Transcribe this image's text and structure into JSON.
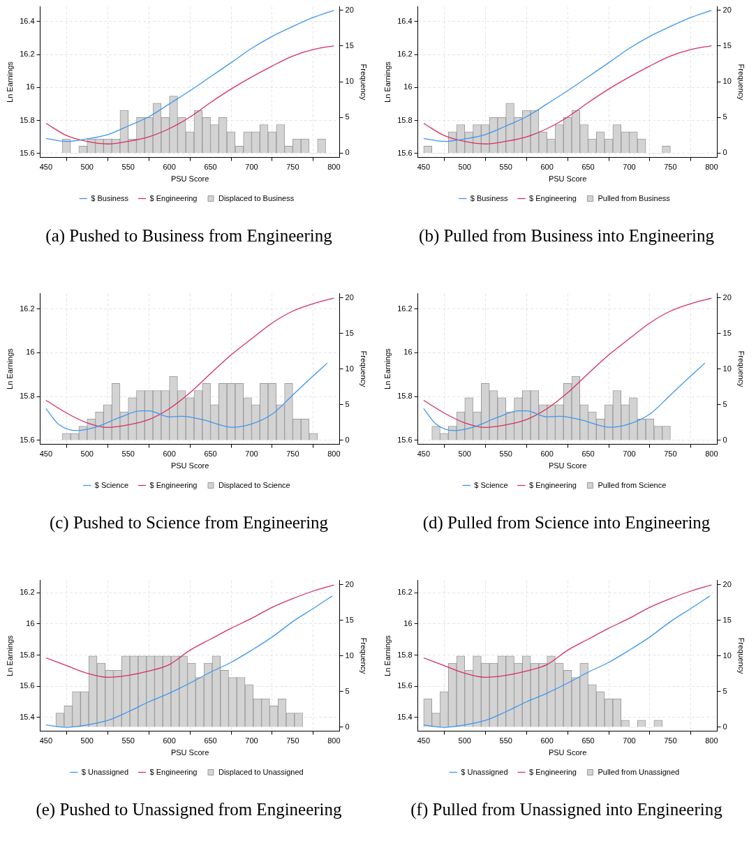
{
  "chart_data": [
    {
      "type": "line",
      "title": "(a) Pushed to Business from Engineering",
      "xlabel": "PSU Score",
      "ylabel": "Ln Earnings",
      "y2label": "Frequency",
      "xlim": [
        443,
        807
      ],
      "xticks": [
        450,
        500,
        550,
        600,
        650,
        700,
        750,
        800
      ],
      "ylim": [
        15.575,
        16.49
      ],
      "yticks": [
        15.6,
        15.8,
        16,
        16.2,
        16.4
      ],
      "y2lim": [
        -0.6,
        20.5
      ],
      "y2ticks": [
        0,
        5,
        10,
        15,
        20
      ],
      "grid": true,
      "legend": "bottom",
      "series": [
        {
          "name": "$ Business",
          "color": "#3c96f0",
          "x": [
            450,
            475,
            500,
            525,
            550,
            575,
            600,
            625,
            650,
            675,
            700,
            725,
            750,
            775,
            800
          ],
          "values": [
            15.69,
            15.672,
            15.688,
            15.714,
            15.766,
            15.822,
            15.9,
            15.98,
            16.065,
            16.15,
            16.237,
            16.31,
            16.37,
            16.425,
            16.468
          ]
        },
        {
          "name": "$ Engineering",
          "color": "#d62f5f",
          "x": [
            450,
            475,
            500,
            525,
            550,
            575,
            600,
            625,
            650,
            675,
            700,
            725,
            750,
            775,
            800
          ],
          "values": [
            15.782,
            15.708,
            15.672,
            15.657,
            15.673,
            15.7,
            15.75,
            15.82,
            15.908,
            15.99,
            16.063,
            16.13,
            16.19,
            16.23,
            16.253
          ]
        },
        {
          "type": "histogram",
          "axis": "y2",
          "name": "Displaced to Business",
          "color": "#d3d3d3",
          "bins": [
            470,
            480,
            490,
            500,
            510,
            520,
            530,
            540,
            550,
            560,
            570,
            580,
            590,
            600,
            610,
            620,
            630,
            640,
            650,
            660,
            670,
            680,
            690,
            700,
            710,
            720,
            730,
            740,
            750,
            760,
            770,
            780,
            790
          ],
          "values": [
            2,
            0,
            1,
            2,
            2,
            2,
            2,
            6,
            2,
            5,
            5,
            7,
            5,
            8,
            5,
            3,
            6,
            5,
            4,
            5,
            3,
            1,
            3,
            3,
            4,
            3,
            4,
            1,
            2,
            2,
            0,
            2
          ]
        }
      ]
    },
    {
      "type": "line",
      "title": "(b) Pulled from Business into Engineering",
      "xlabel": "PSU Score",
      "ylabel": "Ln Earnings",
      "y2label": "Frequency",
      "xlim": [
        443,
        807
      ],
      "xticks": [
        450,
        500,
        550,
        600,
        650,
        700,
        750,
        800
      ],
      "ylim": [
        15.575,
        16.49
      ],
      "yticks": [
        15.6,
        15.8,
        16,
        16.2,
        16.4
      ],
      "y2lim": [
        -0.6,
        20.5
      ],
      "y2ticks": [
        0,
        5,
        10,
        15,
        20
      ],
      "grid": true,
      "legend": "bottom",
      "series": [
        {
          "name": "$ Business",
          "color": "#3c96f0",
          "x": [
            450,
            475,
            500,
            525,
            550,
            575,
            600,
            625,
            650,
            675,
            700,
            725,
            750,
            775,
            800
          ],
          "values": [
            15.69,
            15.672,
            15.688,
            15.714,
            15.766,
            15.822,
            15.9,
            15.98,
            16.065,
            16.15,
            16.237,
            16.31,
            16.37,
            16.425,
            16.468
          ]
        },
        {
          "name": "$ Engineering",
          "color": "#d62f5f",
          "x": [
            450,
            475,
            500,
            525,
            550,
            575,
            600,
            625,
            650,
            675,
            700,
            725,
            750,
            775,
            800
          ],
          "values": [
            15.782,
            15.708,
            15.672,
            15.657,
            15.673,
            15.7,
            15.75,
            15.82,
            15.908,
            15.99,
            16.063,
            16.13,
            16.19,
            16.23,
            16.253
          ]
        },
        {
          "type": "histogram",
          "axis": "y2",
          "name": "Pulled from Business",
          "color": "#d3d3d3",
          "bins": [
            450,
            460,
            470,
            480,
            490,
            500,
            510,
            520,
            530,
            540,
            550,
            560,
            570,
            580,
            590,
            600,
            610,
            620,
            630,
            640,
            650,
            660,
            670,
            680,
            690,
            700,
            710,
            720,
            730,
            740,
            750
          ],
          "values": [
            1,
            0,
            0,
            3,
            4,
            3,
            4,
            4,
            5,
            5,
            7,
            5,
            6,
            6,
            3,
            2,
            4,
            5,
            6,
            4,
            2,
            3,
            2,
            4,
            3,
            3,
            2,
            0,
            0,
            1
          ]
        }
      ]
    },
    {
      "type": "line",
      "title": "(c) Pushed to Science from Engineering",
      "xlabel": "PSU Score",
      "ylabel": "Ln Earnings",
      "y2label": "Frequency",
      "xlim": [
        443,
        807
      ],
      "xticks": [
        450,
        500,
        550,
        600,
        650,
        700,
        750,
        800
      ],
      "ylim": [
        15.582,
        16.27
      ],
      "yticks": [
        15.6,
        15.8,
        16,
        16.2
      ],
      "y2lim": [
        -0.55,
        20.6
      ],
      "y2ticks": [
        0,
        5,
        10,
        15,
        20
      ],
      "grid": true,
      "legend": "bottom",
      "series": [
        {
          "name": "$ Science",
          "color": "#3c96f0",
          "x": [
            450,
            465,
            487,
            510,
            540,
            565,
            575,
            600,
            615,
            640,
            677,
            700,
            725,
            750,
            775,
            792
          ],
          "values": [
            15.745,
            15.675,
            15.645,
            15.66,
            15.705,
            15.735,
            15.735,
            15.707,
            15.71,
            15.695,
            15.66,
            15.675,
            15.72,
            15.807,
            15.895,
            15.953
          ]
        },
        {
          "name": "$ Engineering",
          "color": "#d62f5f",
          "x": [
            450,
            475,
            500,
            525,
            550,
            575,
            600,
            625,
            650,
            675,
            700,
            725,
            750,
            775,
            800
          ],
          "values": [
            15.783,
            15.725,
            15.68,
            15.659,
            15.671,
            15.695,
            15.745,
            15.817,
            15.905,
            15.99,
            16.064,
            16.136,
            16.19,
            16.224,
            16.249
          ]
        },
        {
          "type": "histogram",
          "axis": "y2",
          "name": "Displaced to Science",
          "color": "#d3d3d3",
          "bins": [
            470,
            480,
            490,
            500,
            510,
            520,
            530,
            540,
            550,
            560,
            570,
            580,
            590,
            600,
            610,
            620,
            630,
            640,
            650,
            660,
            670,
            680,
            690,
            700,
            710,
            720,
            730,
            740,
            750,
            760,
            770,
            780
          ],
          "values": [
            1,
            1,
            2,
            3,
            4,
            5,
            8,
            4,
            6,
            7,
            7,
            7,
            7,
            9,
            7,
            6,
            7,
            8,
            5,
            8,
            8,
            8,
            6,
            5,
            8,
            8,
            5,
            8,
            3,
            3,
            1
          ]
        }
      ]
    },
    {
      "type": "line",
      "title": "(d) Pulled from Science into Engineering",
      "xlabel": "PSU Score",
      "ylabel": "Ln Earnings",
      "y2label": "Frequency",
      "xlim": [
        443,
        807
      ],
      "xticks": [
        450,
        500,
        550,
        600,
        650,
        700,
        750,
        800
      ],
      "ylim": [
        15.582,
        16.27
      ],
      "yticks": [
        15.6,
        15.8,
        16,
        16.2
      ],
      "y2lim": [
        -0.55,
        20.6
      ],
      "y2ticks": [
        0,
        5,
        10,
        15,
        20
      ],
      "grid": true,
      "legend": "bottom",
      "series": [
        {
          "name": "$ Science",
          "color": "#3c96f0",
          "x": [
            450,
            465,
            487,
            510,
            540,
            565,
            575,
            600,
            615,
            640,
            677,
            700,
            725,
            750,
            775,
            792
          ],
          "values": [
            15.745,
            15.675,
            15.645,
            15.66,
            15.705,
            15.735,
            15.735,
            15.707,
            15.71,
            15.695,
            15.66,
            15.675,
            15.72,
            15.807,
            15.895,
            15.953
          ]
        },
        {
          "name": "$ Engineering",
          "color": "#d62f5f",
          "x": [
            450,
            475,
            500,
            525,
            550,
            575,
            600,
            625,
            650,
            675,
            700,
            725,
            750,
            775,
            800
          ],
          "values": [
            15.783,
            15.725,
            15.68,
            15.659,
            15.671,
            15.695,
            15.745,
            15.817,
            15.905,
            15.99,
            16.064,
            16.136,
            16.19,
            16.224,
            16.249
          ]
        },
        {
          "type": "histogram",
          "axis": "y2",
          "name": "Pulled from Science",
          "color": "#d3d3d3",
          "bins": [
            460,
            470,
            480,
            490,
            500,
            510,
            520,
            530,
            540,
            550,
            560,
            570,
            580,
            590,
            600,
            610,
            620,
            630,
            640,
            650,
            660,
            670,
            680,
            690,
            700,
            710,
            720,
            730,
            740,
            750
          ],
          "values": [
            2,
            1,
            2,
            4,
            6,
            4,
            8,
            7,
            6,
            4,
            6,
            7,
            7,
            5,
            5,
            5,
            8,
            9,
            5,
            4,
            3,
            5,
            7,
            5,
            6,
            3,
            3,
            2,
            2
          ]
        }
      ]
    },
    {
      "type": "line",
      "title": "(e) Pushed to Unassigned from Engineering",
      "xlabel": "PSU Score",
      "ylabel": "Ln Earnings",
      "y2label": "Frequency",
      "xlim": [
        443,
        807
      ],
      "xticks": [
        450,
        500,
        550,
        600,
        650,
        700,
        750,
        800
      ],
      "ylim": [
        15.31,
        16.28
      ],
      "yticks": [
        15.4,
        15.6,
        15.8,
        16,
        16.2
      ],
      "y2lim": [
        -0.55,
        20.6
      ],
      "y2ticks": [
        0,
        5,
        10,
        15,
        20
      ],
      "grid": true,
      "legend": "bottom",
      "series": [
        {
          "name": "$ Unassigned",
          "color": "#3c96f0",
          "x": [
            450,
            475,
            500,
            525,
            550,
            575,
            600,
            625,
            650,
            675,
            700,
            725,
            750,
            775,
            798
          ],
          "values": [
            15.35,
            15.335,
            15.35,
            15.379,
            15.435,
            15.499,
            15.555,
            15.619,
            15.69,
            15.753,
            15.831,
            15.916,
            16.015,
            16.1,
            16.18
          ]
        },
        {
          "name": "$ Engineering",
          "color": "#d62f5f",
          "x": [
            450,
            475,
            500,
            525,
            550,
            575,
            600,
            625,
            650,
            675,
            700,
            725,
            750,
            775,
            800
          ],
          "values": [
            15.782,
            15.732,
            15.683,
            15.657,
            15.669,
            15.697,
            15.739,
            15.831,
            15.902,
            15.972,
            16.036,
            16.107,
            16.163,
            16.212,
            16.251
          ]
        },
        {
          "type": "histogram",
          "axis": "y2",
          "name": "Displaced to Unassigned",
          "color": "#d3d3d3",
          "bins": [
            462,
            472,
            482,
            492,
            502,
            512,
            522,
            532,
            542,
            552,
            562,
            572,
            582,
            592,
            602,
            612,
            622,
            632,
            642,
            652,
            662,
            672,
            682,
            692,
            702,
            712,
            722,
            732,
            742,
            752,
            762
          ],
          "values": [
            2,
            3,
            5,
            5,
            10,
            9,
            8,
            8,
            10,
            10,
            10,
            10,
            10,
            10,
            10,
            10,
            9,
            7,
            9,
            10,
            8,
            7,
            7,
            6,
            4,
            4,
            3,
            4,
            2,
            2
          ]
        }
      ]
    },
    {
      "type": "line",
      "title": "(f) Pulled from Unassigned into Engineering",
      "xlabel": "PSU Score",
      "ylabel": "Ln Earnings",
      "y2label": "Frequency",
      "xlim": [
        443,
        807
      ],
      "xticks": [
        450,
        500,
        550,
        600,
        650,
        700,
        750,
        800
      ],
      "ylim": [
        15.31,
        16.28
      ],
      "yticks": [
        15.4,
        15.6,
        15.8,
        16,
        16.2
      ],
      "y2lim": [
        -0.55,
        20.6
      ],
      "y2ticks": [
        0,
        5,
        10,
        15,
        20
      ],
      "grid": true,
      "legend": "bottom",
      "series": [
        {
          "name": "$ Unassigned",
          "color": "#3c96f0",
          "x": [
            450,
            475,
            500,
            525,
            550,
            575,
            600,
            625,
            650,
            675,
            700,
            725,
            750,
            775,
            798
          ],
          "values": [
            15.35,
            15.335,
            15.35,
            15.379,
            15.435,
            15.499,
            15.555,
            15.619,
            15.69,
            15.753,
            15.831,
            15.916,
            16.015,
            16.1,
            16.18
          ]
        },
        {
          "name": "$ Engineering",
          "color": "#d62f5f",
          "x": [
            450,
            475,
            500,
            525,
            550,
            575,
            600,
            625,
            650,
            675,
            700,
            725,
            750,
            775,
            800
          ],
          "values": [
            15.782,
            15.732,
            15.683,
            15.657,
            15.669,
            15.697,
            15.739,
            15.831,
            15.902,
            15.972,
            16.036,
            16.107,
            16.163,
            16.212,
            16.251
          ]
        },
        {
          "type": "histogram",
          "axis": "y2",
          "name": "Pulled from Unassigned",
          "color": "#d3d3d3",
          "bins": [
            450,
            460,
            470,
            480,
            490,
            500,
            510,
            520,
            530,
            540,
            550,
            560,
            570,
            580,
            590,
            600,
            610,
            620,
            630,
            640,
            650,
            660,
            670,
            680,
            690,
            700,
            710,
            720,
            730,
            740
          ],
          "values": [
            4,
            2,
            5,
            9,
            10,
            8,
            10,
            9,
            9,
            10,
            10,
            9,
            10,
            9,
            9,
            10,
            9,
            8,
            7,
            9,
            6,
            5,
            4,
            4,
            1,
            0,
            1,
            0,
            1
          ]
        }
      ]
    }
  ]
}
